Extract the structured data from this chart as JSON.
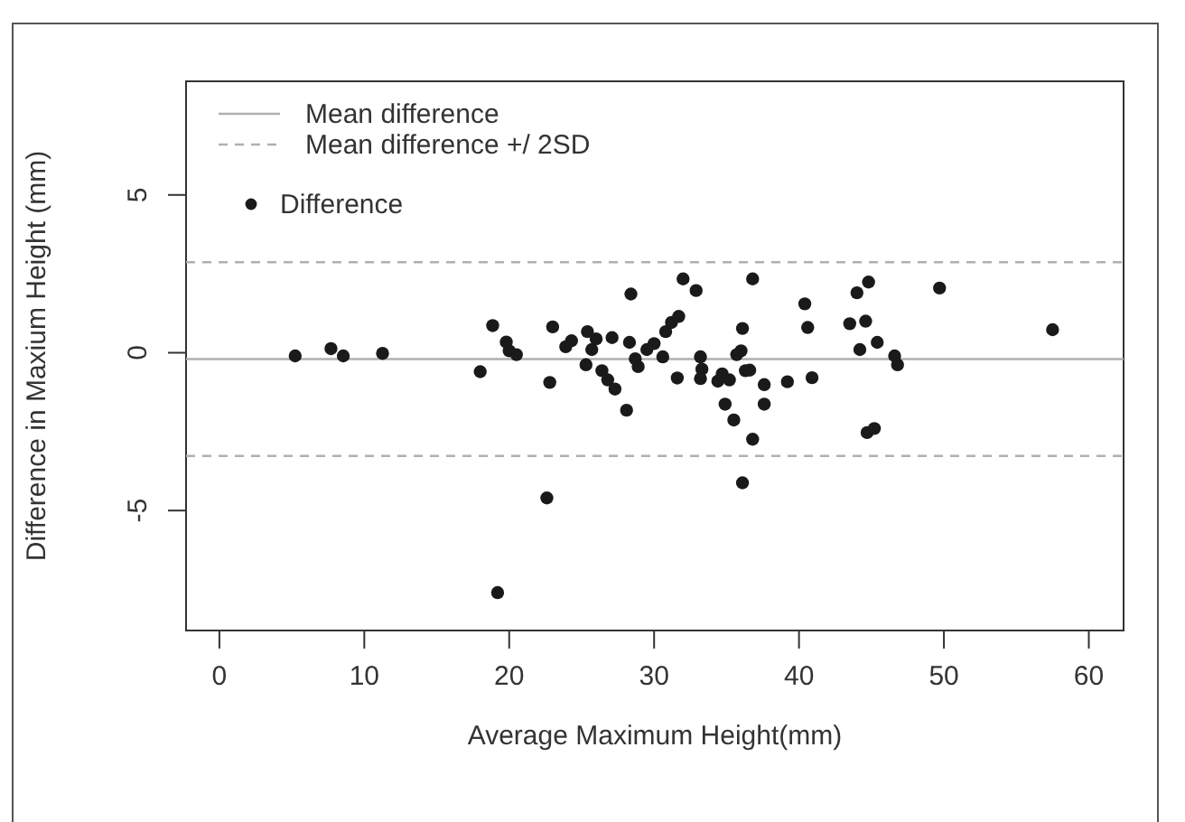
{
  "chart_data": {
    "type": "scatter",
    "xlabel": "Average Maximum Height(mm)",
    "ylabel": "Difference in Maxium Height (mm)",
    "xlim": [
      -2.3,
      62.4
    ],
    "ylim": [
      -8.8,
      8.6
    ],
    "xticks": [
      0,
      10,
      20,
      30,
      40,
      50,
      60
    ],
    "yticks": [
      -5,
      0,
      5
    ],
    "marker": "circle",
    "legend": "top left",
    "series": [
      {
        "name": "Difference",
        "color": "#1a1a1a",
        "x": [
          5.23,
          7.7,
          8.55,
          11.26,
          18.0,
          18.86,
          19.8,
          20.0,
          20.5,
          22.6,
          22.8,
          23.0,
          23.9,
          24.3,
          25.3,
          25.4,
          25.7,
          26.0,
          26.4,
          26.8,
          27.3,
          27.1,
          28.1,
          28.4,
          28.3,
          28.9,
          28.7,
          29.5,
          30.0,
          30.6,
          30.8,
          31.2,
          31.7,
          31.6,
          32.0,
          32.9,
          33.2,
          33.3,
          33.2,
          34.4,
          34.7,
          35.2,
          34.9,
          35.5,
          35.7,
          36.0,
          36.1,
          36.1,
          36.3,
          36.6,
          36.8,
          36.8,
          37.6,
          37.6,
          39.2,
          40.4,
          40.6,
          40.9,
          43.5,
          44.0,
          44.2,
          44.6,
          44.8,
          44.7,
          45.2,
          45.4,
          46.6,
          46.8,
          49.7,
          57.5,
          19.2
        ],
        "values": [
          -0.1,
          0.13,
          -0.1,
          -0.02,
          -0.6,
          0.86,
          0.34,
          0.06,
          -0.06,
          -4.6,
          -0.94,
          0.82,
          0.19,
          0.38,
          -0.38,
          0.67,
          0.1,
          0.44,
          -0.57,
          -0.86,
          -1.15,
          0.48,
          -1.82,
          1.86,
          0.33,
          -0.44,
          -0.19,
          0.1,
          0.29,
          -0.13,
          0.67,
          0.96,
          1.15,
          -0.8,
          2.34,
          1.97,
          -0.13,
          -0.52,
          -0.82,
          -0.9,
          -0.67,
          -0.86,
          -1.63,
          -2.13,
          -0.06,
          0.06,
          0.77,
          -4.12,
          -0.57,
          -0.55,
          2.34,
          -2.74,
          -1.01,
          -1.63,
          -0.92,
          1.55,
          0.8,
          -0.79,
          0.92,
          1.9,
          0.1,
          1.0,
          2.24,
          -2.53,
          -2.4,
          0.33,
          -0.1,
          -0.38,
          2.05,
          0.73,
          -7.6
        ]
      }
    ],
    "ref_lines": [
      {
        "axis": "y",
        "value": -0.2,
        "label": "Mean difference",
        "line_style": "solid",
        "color": "#b0b0b0"
      },
      {
        "axis": "y",
        "value": 2.87,
        "label": "Mean difference +/ 2SD",
        "line_style": "dashed",
        "color": "#b0b0b0"
      },
      {
        "axis": "y",
        "value": -3.27,
        "label": null,
        "line_style": "dashed",
        "color": "#b0b0b0"
      }
    ]
  }
}
